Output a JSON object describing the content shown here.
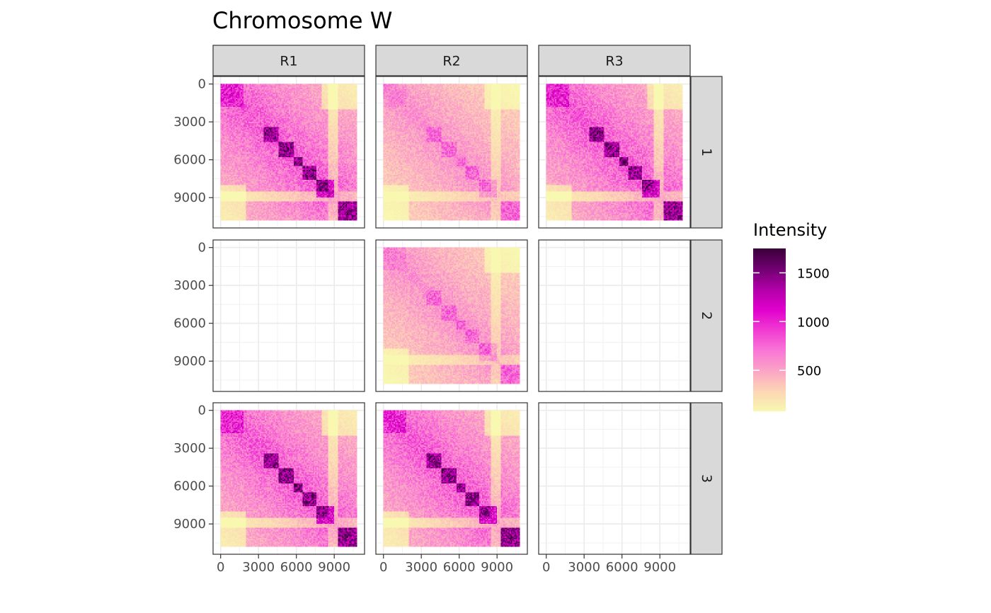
{
  "chart_data": {
    "type": "heatmap",
    "title": "Chromosome W",
    "xlabel": "",
    "ylabel": "",
    "col_facets": [
      "R1",
      "R2",
      "R3"
    ],
    "row_facets": [
      "1",
      "2",
      "3"
    ],
    "x_ticks": [
      0,
      3000,
      6000,
      9000
    ],
    "y_ticks": [
      0,
      3000,
      6000,
      9000
    ],
    "x_tick_labels": [
      "0",
      "3000",
      "6000",
      "9000"
    ],
    "y_tick_labels": [
      "0",
      "3000",
      "6000",
      "9000"
    ],
    "xlim": [
      -600,
      11400
    ],
    "ylim": [
      -600,
      11400
    ],
    "bin_size": 100,
    "genome_extent": [
      0,
      10800
    ],
    "y_reversed": true,
    "grid": true,
    "legend": {
      "title": "Intensity",
      "position": "right",
      "breaks": [
        500,
        1000,
        1500
      ],
      "labels": [
        "500",
        "1000",
        "1500"
      ],
      "range": [
        80,
        1750
      ],
      "colors": [
        "#f8f8b0",
        "#fcd5b5",
        "#fba3c6",
        "#f975d6",
        "#f03ad2",
        "#e000cc",
        "#b000a8",
        "#700070",
        "#3a0038"
      ]
    },
    "panels": [
      {
        "row": "1",
        "col": "R1",
        "has_data": true,
        "profile": "strong",
        "approx_max": 1750
      },
      {
        "row": "1",
        "col": "R2",
        "has_data": true,
        "profile": "weak",
        "approx_max": 900
      },
      {
        "row": "1",
        "col": "R3",
        "has_data": true,
        "profile": "strong",
        "approx_max": 1750
      },
      {
        "row": "2",
        "col": "R1",
        "has_data": false
      },
      {
        "row": "2",
        "col": "R2",
        "has_data": true,
        "profile": "weak",
        "approx_max": 900
      },
      {
        "row": "2",
        "col": "R3",
        "has_data": false
      },
      {
        "row": "3",
        "col": "R1",
        "has_data": true,
        "profile": "strong",
        "approx_max": 1750
      },
      {
        "row": "3",
        "col": "R2",
        "has_data": true,
        "profile": "strong",
        "approx_max": 1750
      },
      {
        "row": "3",
        "col": "R3",
        "has_data": false
      }
    ],
    "domains_bp": [
      [
        3400,
        4600
      ],
      [
        4600,
        5800
      ],
      [
        5800,
        6500
      ],
      [
        6500,
        7600
      ],
      [
        7600,
        9000
      ],
      [
        9300,
        10800
      ]
    ]
  }
}
